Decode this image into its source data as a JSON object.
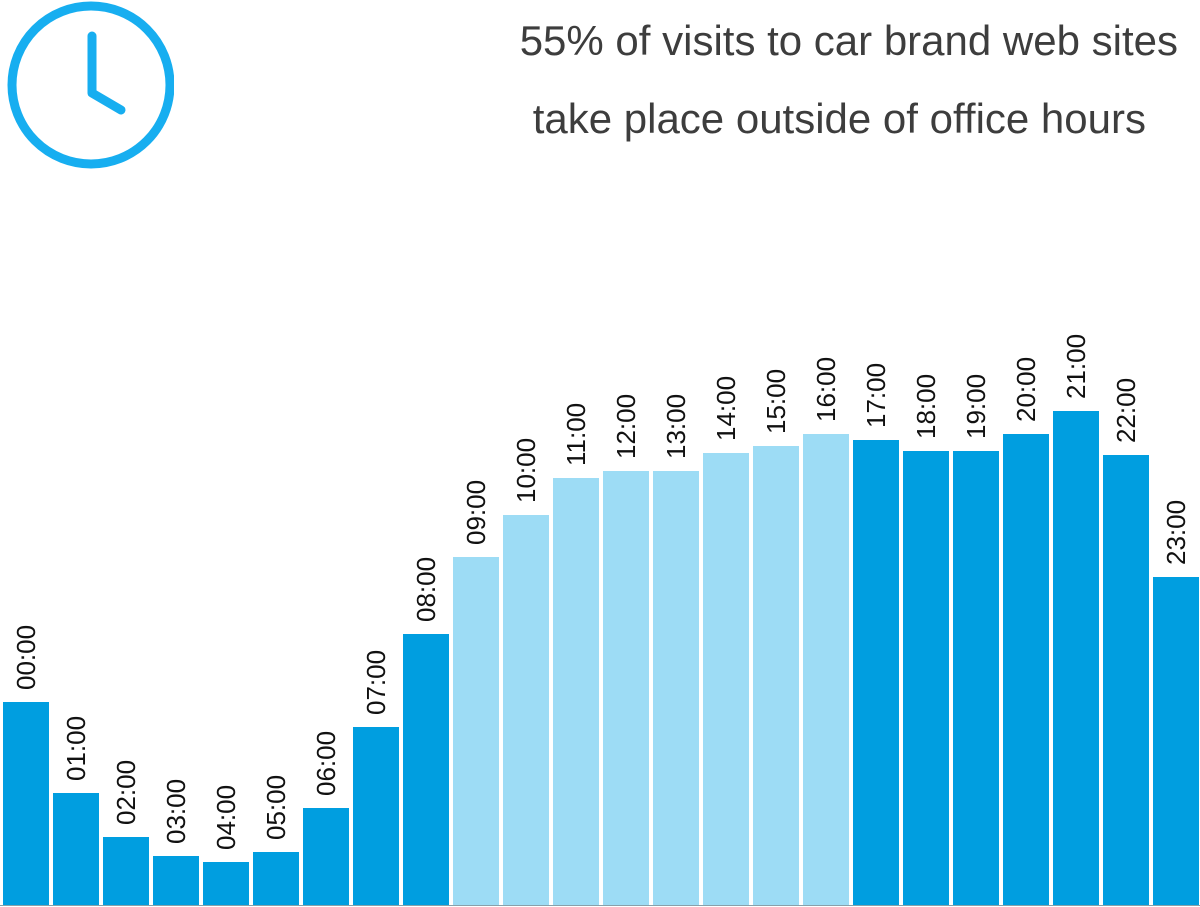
{
  "title": {
    "line1": "55% of visits to car brand web sites",
    "line2": "take place outside of office hours"
  },
  "icon": "clock-icon",
  "colors": {
    "outside_hours": "#009ee0",
    "office_hours": "#9ddcf5",
    "text": "#3d3d3d",
    "icon": "#17aef0"
  },
  "chart_data": {
    "type": "bar",
    "title": "55% of visits to car brand web sites take place outside of office hours",
    "categories": [
      "00:00",
      "01:00",
      "02:00",
      "03:00",
      "04:00",
      "05:00",
      "06:00",
      "07:00",
      "08:00",
      "09:00",
      "10:00",
      "11:00",
      "12:00",
      "13:00",
      "14:00",
      "15:00",
      "16:00",
      "17:00",
      "18:00",
      "19:00",
      "20:00",
      "21:00",
      "22:00",
      "23:00"
    ],
    "values": [
      203,
      112,
      68,
      49,
      43,
      53,
      97,
      178,
      271,
      348,
      390,
      427,
      434,
      434,
      452,
      459,
      471,
      465,
      454,
      454,
      471,
      494,
      450,
      328
    ],
    "highlight": [
      "outside",
      "outside",
      "outside",
      "outside",
      "outside",
      "outside",
      "outside",
      "outside",
      "outside",
      "office",
      "office",
      "office",
      "office",
      "office",
      "office",
      "office",
      "office",
      "outside",
      "outside",
      "outside",
      "outside",
      "outside",
      "outside",
      "outside"
    ],
    "xlabel": "",
    "ylabel": "",
    "ylim": [
      0,
      500
    ],
    "grid": false,
    "legend": "none"
  }
}
